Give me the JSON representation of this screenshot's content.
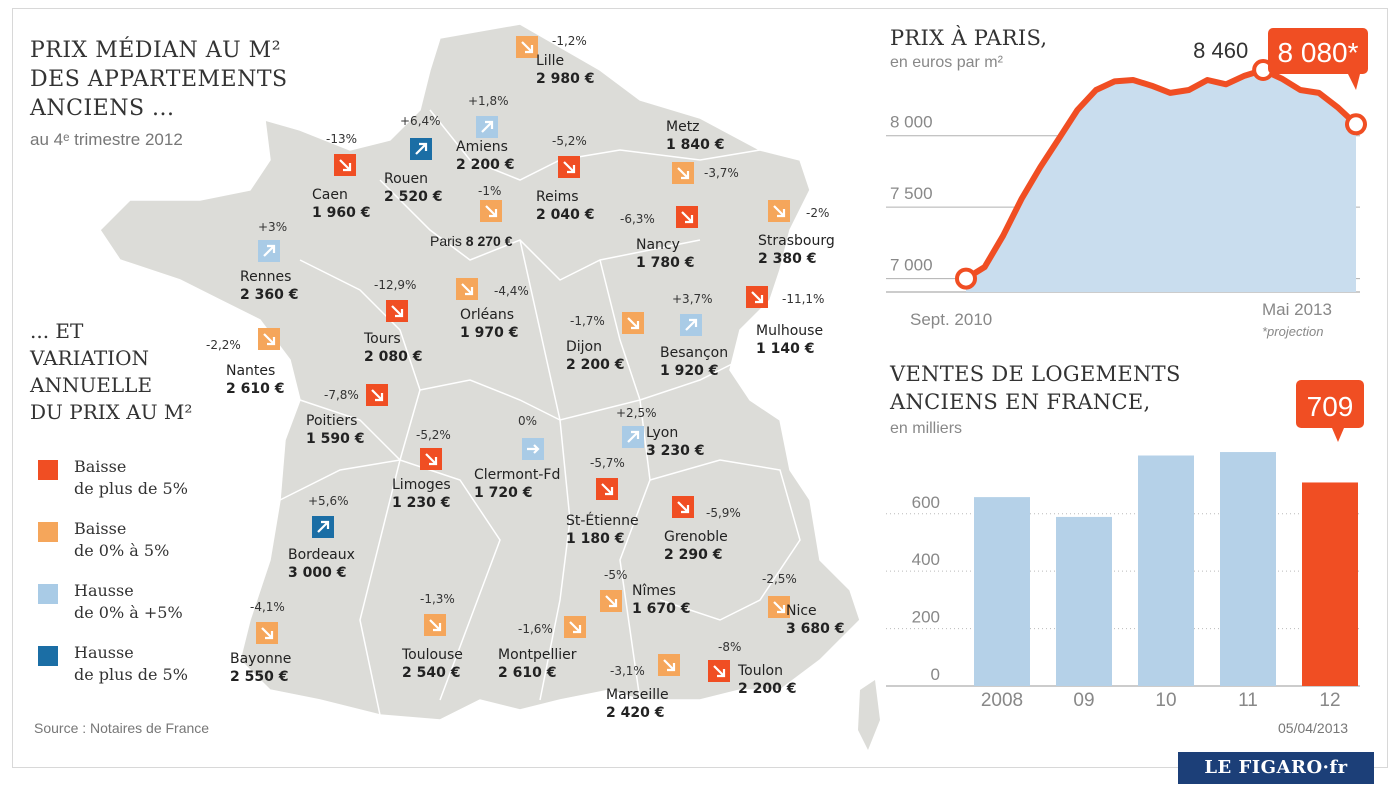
{
  "map": {
    "title_lines": [
      "PRIX MÉDIAN AU M²",
      "DES APPARTEMENTS",
      "ANCIENS ..."
    ],
    "subtitle": "au 4ᵉ trimestre 2012",
    "variation_title": [
      "... ET",
      "VARIATION",
      "ANNUELLE",
      "DU PRIX AU M²"
    ],
    "legend": [
      {
        "label_1": "Baisse",
        "label_2": "de plus de 5%",
        "color": "#f04e23",
        "icon": "arrow-down-right"
      },
      {
        "label_1": "Baisse",
        "label_2": "de 0% à 5%",
        "color": "#f5a65b",
        "icon": "arrow-down-right"
      },
      {
        "label_1": "Hausse",
        "label_2": "de 0% à +5%",
        "color": "#a9cbe6",
        "icon": "arrow-up-right"
      },
      {
        "label_1": "Hausse",
        "label_2": "de plus de 5%",
        "color": "#1b6ea5",
        "icon": "arrow-up-right"
      }
    ],
    "source": "Source : Notaires de France",
    "cities": [
      {
        "name": "Lille",
        "price": "2 980 €",
        "change": "-1,2%",
        "category": 1
      },
      {
        "name": "Amiens",
        "price": "2 200 €",
        "change": "+1,8%",
        "category": 2
      },
      {
        "name": "Rouen",
        "price": "2 520 €",
        "change": "+6,4%",
        "category": 3
      },
      {
        "name": "Caen",
        "price": "1 960 €",
        "change": "-13%",
        "category": 0
      },
      {
        "name": "Reims",
        "price": "2 040 €",
        "change": "-5,2%",
        "category": 0
      },
      {
        "name": "Metz",
        "price": "1 840 €",
        "change": "-3,7%",
        "category": 1
      },
      {
        "name": "Paris",
        "price": "8 270 €",
        "change": "-1%",
        "category": 1
      },
      {
        "name": "Nancy",
        "price": "1 780 €",
        "change": "-6,3%",
        "category": 0
      },
      {
        "name": "Strasbourg",
        "price": "2 380 €",
        "change": "-2%",
        "category": 1
      },
      {
        "name": "Rennes",
        "price": "2 360 €",
        "change": "+3%",
        "category": 2
      },
      {
        "name": "Tours",
        "price": "2 080 €",
        "change": "-12,9%",
        "category": 0
      },
      {
        "name": "Orléans",
        "price": "1 970 €",
        "change": "-4,4%",
        "category": 1
      },
      {
        "name": "Mulhouse",
        "price": "1 140 €",
        "change": "-11,1%",
        "category": 0
      },
      {
        "name": "Dijon",
        "price": "2 200 €",
        "change": "-1,7%",
        "category": 1
      },
      {
        "name": "Besançon",
        "price": "1 920 €",
        "change": "+3,7%",
        "category": 2
      },
      {
        "name": "Nantes",
        "price": "2 610 €",
        "change": "-2,2%",
        "category": 1
      },
      {
        "name": "Poitiers",
        "price": "1 590 €",
        "change": "-7,8%",
        "category": 0
      },
      {
        "name": "Limoges",
        "price": "1 230 €",
        "change": "-5,2%",
        "category": 0
      },
      {
        "name": "Clermont-Fd",
        "price": "1 720 €",
        "change": "0%",
        "category": 2
      },
      {
        "name": "Lyon",
        "price": "3 230 €",
        "change": "+2,5%",
        "category": 2
      },
      {
        "name": "St-Étienne",
        "price": "1 180 €",
        "change": "-5,7%",
        "category": 0
      },
      {
        "name": "Grenoble",
        "price": "2 290 €",
        "change": "-5,9%",
        "category": 0
      },
      {
        "name": "Bordeaux",
        "price": "3 000 €",
        "change": "+5,6%",
        "category": 3
      },
      {
        "name": "Nîmes",
        "price": "1 670 €",
        "change": "-5%",
        "category": 1
      },
      {
        "name": "Nice",
        "price": "3 680 €",
        "change": "-2,5%",
        "category": 1
      },
      {
        "name": "Bayonne",
        "price": "2 550 €",
        "change": "-4,1%",
        "category": 1
      },
      {
        "name": "Toulouse",
        "price": "2 540 €",
        "change": "-1,3%",
        "category": 1
      },
      {
        "name": "Montpellier",
        "price": "2 610 €",
        "change": "-1,6%",
        "category": 1
      },
      {
        "name": "Marseille",
        "price": "2 420 €",
        "change": "-3,1%",
        "category": 1
      },
      {
        "name": "Toulon",
        "price": "2 200 €",
        "change": "-8%",
        "category": 0
      }
    ]
  },
  "chart_data": [
    {
      "type": "line",
      "title": "PRIX À PARIS,",
      "subtitle": "en euros par m²",
      "x_start_label": "Sept. 2010",
      "x_end_label": "Mai 2013",
      "note": "*projection",
      "ylim": [
        6850,
        8600
      ],
      "yticks": [
        7000,
        7500,
        8000
      ],
      "ytick_labels": [
        "7 000",
        "7 500",
        "8 000"
      ],
      "values": [
        7000,
        7080,
        7300,
        7560,
        7780,
        7980,
        8180,
        8320,
        8380,
        8390,
        8350,
        8300,
        8320,
        8390,
        8360,
        8420,
        8460,
        8400,
        8320,
        8300,
        8200,
        8080
      ],
      "peak_label": "8 460",
      "last_label": "8 080*",
      "line_color": "#f04e23",
      "fill_color": "#c9ddee"
    },
    {
      "type": "bar",
      "title": "VENTES DE LOGEMENTS ANCIENS EN FRANCE,",
      "title_lines": [
        "VENTES DE LOGEMENTS",
        "ANCIENS EN FRANCE,"
      ],
      "subtitle": "en milliers",
      "categories": [
        "2008",
        "09",
        "10",
        "11",
        "12"
      ],
      "values": [
        658,
        589,
        803,
        815,
        709
      ],
      "ylim": [
        0,
        850
      ],
      "yticks": [
        0,
        200,
        400,
        600
      ],
      "highlight_label": "709",
      "bar_color": "#b5d1e8",
      "highlight_color": "#f04e23"
    }
  ],
  "date": "05/04/2013",
  "logo": "LE FIGARO·fr"
}
